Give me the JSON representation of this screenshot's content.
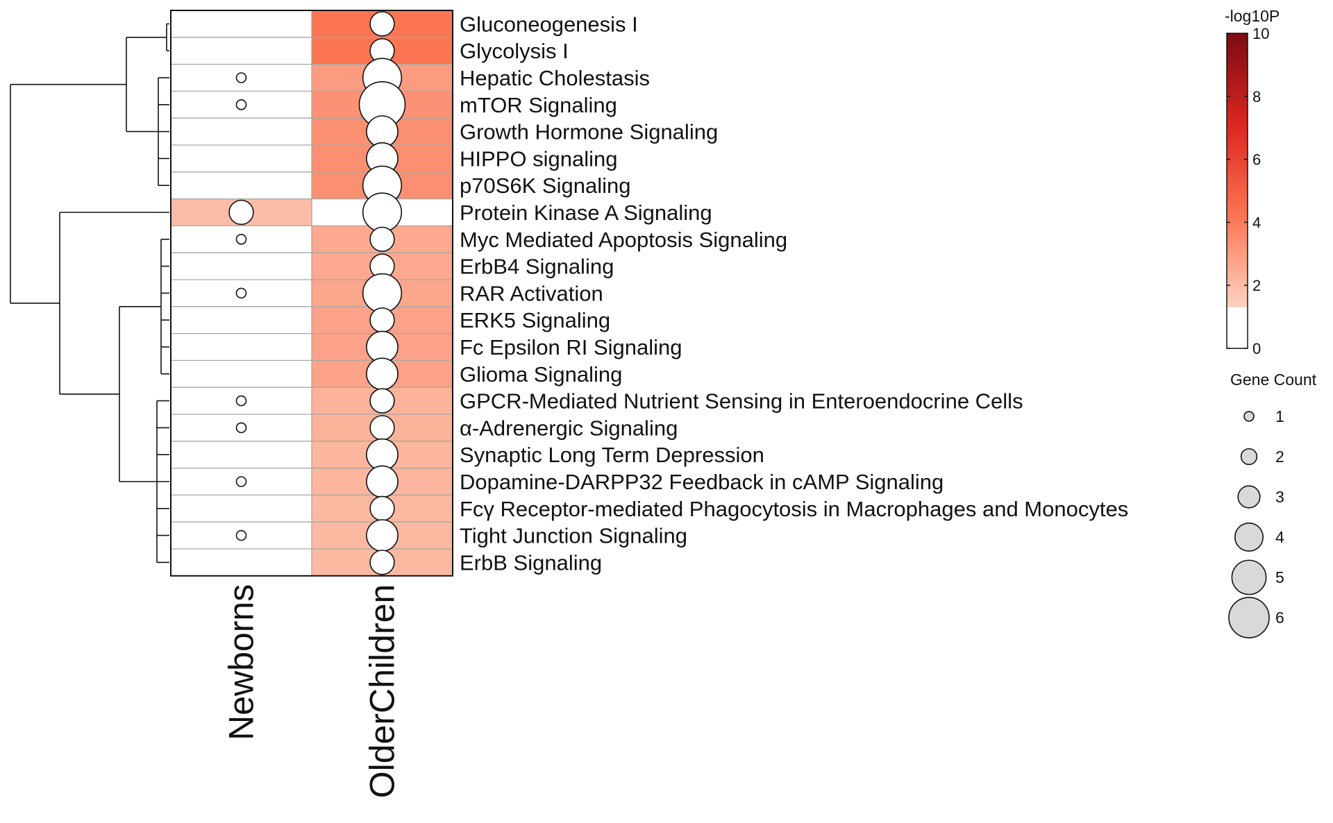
{
  "chart_data": {
    "type": "heatmap",
    "columns": [
      "Newborns",
      "OlderChildren"
    ],
    "rows": [
      "Gluconeogenesis I",
      "Glycolysis I",
      "Hepatic Cholestasis",
      "mTOR Signaling",
      "Growth Hormone Signaling",
      "HIPPO signaling",
      "p70S6K Signaling",
      "Protein Kinase A Signaling",
      "Myc Mediated Apoptosis Signaling",
      "ErbB4 Signaling",
      "RAR Activation",
      "ERK5 Signaling",
      "Fc Epsilon RI Signaling",
      "Glioma Signaling",
      "GPCR-Mediated Nutrient Sensing in Enteroendocrine Cells",
      "α-Adrenergic Signaling",
      "Synaptic Long Term Depression",
      "Dopamine-DARPP32 Feedback in cAMP Signaling",
      "Fcγ Receptor-mediated Phagocytosis in Macrophages and Monocytes",
      "Tight Junction Signaling",
      "ErbB Signaling"
    ],
    "neglog10p": [
      [
        0,
        4.2
      ],
      [
        0,
        4.2
      ],
      [
        0,
        3.0
      ],
      [
        0,
        3.3
      ],
      [
        0,
        3.4
      ],
      [
        0,
        3.4
      ],
      [
        0,
        3.4
      ],
      [
        2.0,
        0
      ],
      [
        0,
        2.6
      ],
      [
        0,
        2.6
      ],
      [
        0,
        2.7
      ],
      [
        0,
        2.8
      ],
      [
        0,
        2.8
      ],
      [
        0,
        2.8
      ],
      [
        0,
        2.3
      ],
      [
        0,
        2.3
      ],
      [
        0,
        2.2
      ],
      [
        0,
        2.2
      ],
      [
        0,
        2.1
      ],
      [
        0,
        2.1
      ],
      [
        0,
        2.1
      ]
    ],
    "gene_count": [
      [
        0,
        3
      ],
      [
        0,
        3
      ],
      [
        1,
        5
      ],
      [
        1,
        6
      ],
      [
        0,
        4
      ],
      [
        0,
        4
      ],
      [
        0,
        5
      ],
      [
        3,
        5
      ],
      [
        1,
        3
      ],
      [
        0,
        3
      ],
      [
        1,
        5
      ],
      [
        0,
        3
      ],
      [
        0,
        4
      ],
      [
        0,
        4
      ],
      [
        1,
        3
      ],
      [
        1,
        3
      ],
      [
        0,
        4
      ],
      [
        1,
        4
      ],
      [
        0,
        3
      ],
      [
        1,
        4
      ],
      [
        0,
        3
      ]
    ],
    "color_legend": {
      "title": "-log10P",
      "range": [
        0,
        10
      ],
      "ticks": [
        "10",
        "8",
        "6",
        "4",
        "2",
        "0"
      ],
      "tick_values": [
        10,
        8,
        6,
        4,
        2,
        0
      ],
      "threshold": 1.3,
      "colors": [
        "#fcd3c0",
        "#fb7553",
        "#dc2620",
        "#7a0c12"
      ]
    },
    "size_legend": {
      "title": "Gene Count",
      "values": [
        1,
        2,
        3,
        4,
        5,
        6
      ],
      "labels": [
        "1",
        "2",
        "3",
        "4",
        "5",
        "6"
      ]
    },
    "dendrogram": {
      "clusters": [
        [
          0,
          1
        ],
        [
          2,
          3,
          4,
          5,
          6
        ],
        [
          7
        ],
        [
          8,
          9,
          10,
          11,
          12,
          13
        ],
        [
          14,
          15,
          16,
          17,
          18,
          19,
          20
        ]
      ]
    }
  }
}
